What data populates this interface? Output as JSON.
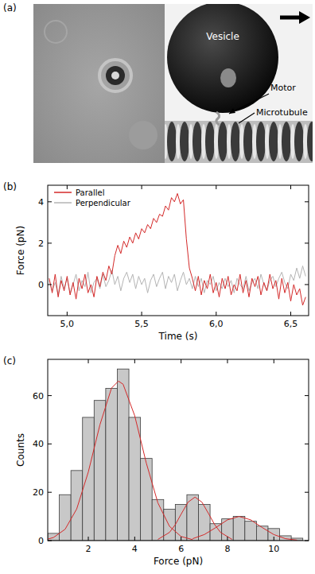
{
  "panel_a": {
    "label": "(a)",
    "annotations": [
      "Vesicle",
      "Motor",
      "Microtubule"
    ]
  },
  "chart_data": [
    {
      "type": "line",
      "title": "(b)",
      "x_label": "Time (s)",
      "y_label": "Force (pN)",
      "x": [
        4.88,
        4.9,
        4.92,
        4.94,
        4.96,
        4.98,
        5.0,
        5.02,
        5.04,
        5.06,
        5.08,
        5.1,
        5.12,
        5.14,
        5.16,
        5.18,
        5.2,
        5.22,
        5.24,
        5.26,
        5.28,
        5.3,
        5.32,
        5.34,
        5.36,
        5.38,
        5.4,
        5.42,
        5.44,
        5.46,
        5.48,
        5.5,
        5.52,
        5.54,
        5.56,
        5.58,
        5.6,
        5.62,
        5.64,
        5.66,
        5.68,
        5.7,
        5.72,
        5.74,
        5.76,
        5.78,
        5.8,
        5.82,
        5.84,
        5.86,
        5.88,
        5.9,
        5.92,
        5.94,
        5.96,
        5.98,
        6.0,
        6.02,
        6.04,
        6.06,
        6.08,
        6.1,
        6.12,
        6.14,
        6.16,
        6.18,
        6.2,
        6.22,
        6.24,
        6.26,
        6.28,
        6.3,
        6.32,
        6.34,
        6.36,
        6.38,
        6.4,
        6.42,
        6.44,
        6.46,
        6.48,
        6.5,
        6.52,
        6.54,
        6.56,
        6.58,
        6.6
      ],
      "series": [
        {
          "name": "Parallel",
          "color": "#d42a2a",
          "values": [
            0.3,
            -0.4,
            0.5,
            -0.6,
            0.2,
            -0.3,
            0.4,
            -0.5,
            0.1,
            -0.7,
            0.3,
            -0.2,
            0.5,
            -0.4,
            0.0,
            -0.6,
            0.4,
            -0.1,
            0.6,
            0.2,
            0.9,
            0.5,
            1.4,
            1.9,
            1.5,
            2.1,
            1.8,
            2.3,
            2.0,
            2.5,
            2.2,
            2.7,
            2.5,
            2.9,
            2.7,
            3.2,
            3.0,
            3.4,
            3.3,
            3.8,
            3.6,
            4.2,
            4.0,
            4.4,
            3.9,
            4.1,
            2.2,
            0.8,
            0.3,
            -0.3,
            0.4,
            -0.5,
            0.2,
            -0.2,
            0.5,
            -0.4,
            0.1,
            -0.6,
            0.3,
            -0.2,
            0.4,
            -0.5,
            0.0,
            -0.3,
            0.5,
            -0.4,
            0.2,
            -0.6,
            0.3,
            -0.1,
            0.4,
            -0.5,
            0.1,
            -0.3,
            0.5,
            -0.2,
            0.2,
            -0.7,
            0.3,
            -0.4,
            0.1,
            -0.8,
            0.0,
            -0.5,
            -0.2,
            -1.0,
            -0.6
          ]
        },
        {
          "name": "Perpendicular",
          "color": "#b4b4b4",
          "values": [
            0.2,
            -0.3,
            0.1,
            -0.5,
            0.4,
            -0.2,
            0.3,
            -0.4,
            0.0,
            0.5,
            -0.3,
            0.2,
            -0.1,
            0.6,
            -0.4,
            0.1,
            0.3,
            -0.2,
            0.5,
            -0.1,
            0.2,
            0.7,
            0.0,
            0.4,
            -0.3,
            0.3,
            0.6,
            0.1,
            0.5,
            -0.2,
            0.4,
            0.0,
            0.3,
            -0.4,
            0.2,
            0.5,
            -0.1,
            0.3,
            0.6,
            -0.2,
            0.4,
            0.1,
            0.5,
            -0.3,
            0.2,
            0.6,
            0.0,
            0.3,
            -0.2,
            0.4,
            -0.1,
            0.3,
            -0.4,
            0.2,
            0.0,
            0.4,
            -0.3,
            0.1,
            -0.2,
            0.3,
            -0.1,
            0.2,
            -0.4,
            0.3,
            0.0,
            -0.2,
            0.4,
            -0.3,
            0.1,
            0.3,
            -0.2,
            0.5,
            0.0,
            -0.3,
            0.2,
            0.4,
            -0.1,
            0.3,
            0.6,
            0.1,
            -0.2,
            0.5,
            0.2,
            0.8,
            0.3,
            0.9,
            0.4
          ]
        }
      ],
      "xlim": [
        4.87,
        6.62
      ],
      "xticks": [
        {
          "value": 5,
          "label": "5,0"
        },
        {
          "value": 5.5,
          "label": "5,5"
        },
        {
          "value": 6,
          "label": "6,0"
        },
        {
          "value": 6.5,
          "label": "6,5"
        }
      ],
      "ylim": [
        -1.5,
        4.8
      ],
      "yticks": [
        0,
        2,
        4
      ],
      "legend": "upper-left",
      "grid": false
    },
    {
      "type": "histogram",
      "title": "(c)",
      "x_label": "Force (pN)",
      "y_label": "Counts",
      "bins": [
        0.25,
        0.75,
        1.25,
        1.75,
        2.25,
        2.75,
        3.25,
        3.75,
        4.25,
        4.75,
        5.25,
        5.75,
        6.25,
        6.75,
        7.25,
        7.75,
        8.25,
        8.75,
        9.25,
        9.75,
        10.25,
        10.75,
        11.25
      ],
      "values": [
        3,
        19,
        29,
        51,
        58,
        63,
        71,
        51,
        34,
        17,
        13,
        15,
        19,
        15,
        7,
        9,
        10,
        8,
        6,
        5,
        2,
        1
      ],
      "color": "#c8c8c8",
      "series": [
        {
          "type": "line",
          "color": "#d42a2a",
          "x": [
            0.25,
            0.5,
            1.0,
            1.5,
            2.0,
            2.5,
            3.0,
            3.3,
            3.5,
            4.0,
            4.5,
            5.0,
            5.5,
            6.0,
            6.5
          ],
          "values": [
            0.6,
            1.3,
            4.7,
            13.1,
            28.4,
            47.9,
            63.1,
            66,
            64.7,
            51.7,
            32.1,
            15.6,
            5.9,
            1.7,
            0.4
          ]
        },
        {
          "type": "line",
          "color": "#d42a2a",
          "x": [
            5.0,
            5.5,
            5.75,
            6.0,
            6.3,
            6.6,
            6.9,
            7.2,
            7.45,
            7.7,
            8.2
          ],
          "values": [
            0.5,
            3.4,
            6.6,
            10.9,
            15.9,
            18,
            15.9,
            10.9,
            6.6,
            3.4,
            0.5
          ]
        },
        {
          "type": "line",
          "color": "#d42a2a",
          "x": [
            6.5,
            7.0,
            7.5,
            8.0,
            8.5,
            9.0,
            9.5,
            10.0,
            10.5,
            11.0
          ],
          "values": [
            0.8,
            2.5,
            5.4,
            8.6,
            10,
            8.6,
            5.4,
            2.5,
            0.8,
            0.2
          ]
        }
      ],
      "xlim": [
        0.25,
        11.5
      ],
      "xticks": [
        2,
        4,
        6,
        8,
        10
      ],
      "ylim": [
        0,
        75
      ],
      "yticks": [
        0,
        20,
        40,
        60
      ],
      "grid": false
    }
  ]
}
